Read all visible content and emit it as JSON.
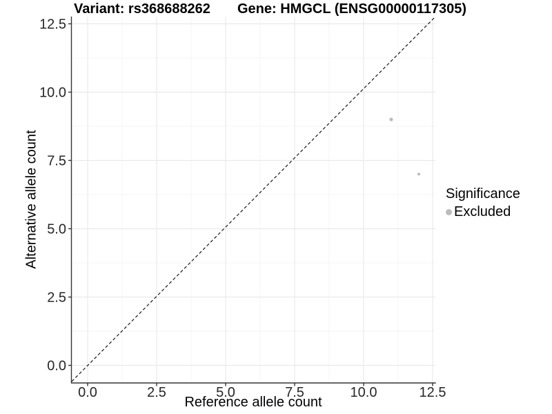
{
  "titles": {
    "left": "Variant: rs368688262",
    "right": "Gene: HMGCL (ENSG00000117305)"
  },
  "chart_data": {
    "type": "scatter",
    "title_left": "Variant: rs368688262",
    "title_right": "Gene: HMGCL (ENSG00000117305)",
    "xlabel": "Reference allele count",
    "ylabel": "Alternative allele count",
    "xlim": [
      -0.625,
      12.6
    ],
    "ylim": [
      -0.65,
      12.9
    ],
    "x_ticks": {
      "values": [
        0,
        2.5,
        5,
        7.5,
        10,
        12.5
      ],
      "labels": [
        "0.0",
        "2.5",
        "5.0",
        "7.5",
        "10.0",
        "12.5"
      ]
    },
    "y_ticks": {
      "values": [
        0,
        2.5,
        5,
        7.5,
        10,
        12.5
      ],
      "labels": [
        "0.0",
        "2.5",
        "5.0",
        "7.5",
        "10.0",
        "12.5"
      ]
    },
    "minor_ticks": [
      1.25,
      3.75,
      6.25,
      8.75,
      11.25
    ],
    "grid": "major and minor gridlines, light gray, on white panel",
    "series": [
      {
        "name": "Excluded",
        "color": "#bcbcbc",
        "points": [
          {
            "x": 11,
            "y": 9,
            "r": 2.6
          },
          {
            "x": 12,
            "y": 7,
            "r": 2.1
          }
        ]
      }
    ],
    "identity_line": {
      "equation": "y = x",
      "style": "dashed",
      "color": "#161616"
    },
    "legend": {
      "title": "Significance",
      "position": "right",
      "items": [
        {
          "label": "Excluded",
          "color": "#bcbcbc",
          "marker": "circle"
        }
      ]
    }
  },
  "colors": {
    "background": "#ffffff",
    "grid_major": "#e9e9e9",
    "grid_minor": "#f4f4f4",
    "axis_line": "#333333",
    "tick_label": "#262626",
    "point": "#bcbcbc"
  }
}
